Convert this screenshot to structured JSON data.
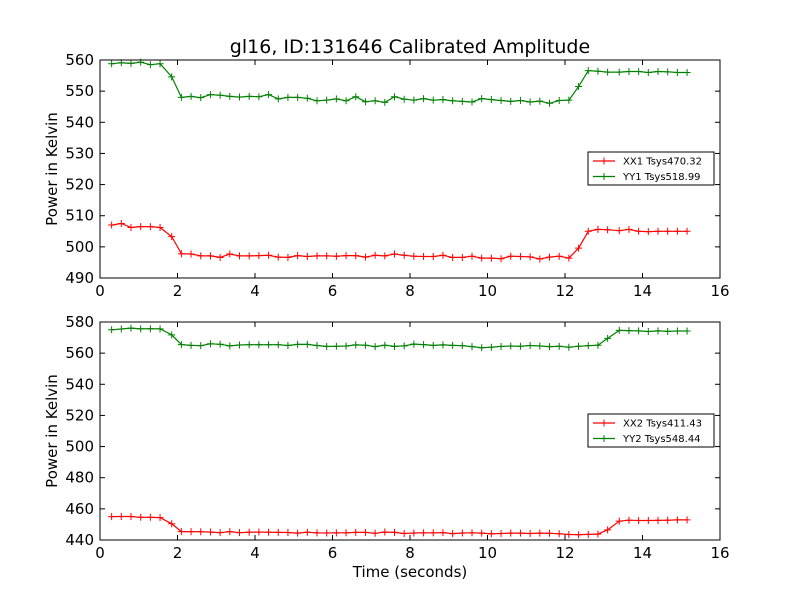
{
  "figure": {
    "title": "gl16, ID:131646 Calibrated Amplitude",
    "xlabel": "Time (seconds)"
  },
  "chart_data": [
    {
      "type": "line",
      "title": "gl16, ID:131646 Calibrated Amplitude",
      "xlabel": "",
      "ylabel": "Power in Kelvin",
      "xlim": [
        0,
        16
      ],
      "ylim": [
        490,
        560
      ],
      "xticks": [
        0,
        2,
        4,
        6,
        8,
        10,
        12,
        14,
        16
      ],
      "yticks": [
        490,
        500,
        510,
        520,
        530,
        540,
        550,
        560
      ],
      "xtick_labels": [
        "0",
        "2",
        "4",
        "6",
        "8",
        "10",
        "12",
        "14",
        "16"
      ],
      "ytick_labels": [
        "490",
        "500",
        "510",
        "520",
        "530",
        "540",
        "550",
        "560"
      ],
      "grid": false,
      "legend_position": "center-right",
      "x": [
        0.3,
        0.55,
        0.8,
        1.05,
        1.3,
        1.55,
        1.85,
        2.1,
        2.35,
        2.6,
        2.85,
        3.1,
        3.35,
        3.6,
        3.85,
        4.1,
        4.35,
        4.6,
        4.85,
        5.1,
        5.35,
        5.6,
        5.85,
        6.1,
        6.35,
        6.6,
        6.85,
        7.1,
        7.35,
        7.6,
        7.85,
        8.1,
        8.35,
        8.6,
        8.85,
        9.1,
        9.35,
        9.6,
        9.85,
        10.1,
        10.35,
        10.6,
        10.85,
        11.1,
        11.35,
        11.6,
        11.85,
        12.1,
        12.35,
        12.6,
        12.85,
        13.1,
        13.4,
        13.65,
        13.9,
        14.15,
        14.4,
        14.65,
        14.9,
        15.15
      ],
      "series": [
        {
          "name": "XX1 Tsys470.32",
          "color": "#ff0000",
          "values": [
            507.0,
            507.5,
            506.2,
            506.5,
            506.5,
            506.2,
            503.3,
            497.8,
            497.7,
            497.1,
            497.1,
            496.6,
            497.7,
            497.1,
            497.1,
            497.2,
            497.3,
            496.7,
            496.6,
            497.2,
            496.9,
            497.1,
            497.1,
            497.0,
            497.2,
            497.2,
            496.7,
            497.3,
            497.1,
            497.7,
            497.3,
            497.0,
            496.9,
            496.9,
            497.3,
            496.6,
            496.6,
            497.0,
            496.4,
            496.4,
            496.2,
            497.0,
            496.9,
            496.8,
            496.1,
            496.7,
            497.0,
            496.4,
            499.6,
            505.0,
            505.6,
            505.5,
            505.2,
            505.6,
            505.0,
            504.9,
            505.0,
            505.0,
            505.0,
            505.0
          ]
        },
        {
          "name": "YY1 Tsys518.99",
          "color": "#008000",
          "values": [
            558.8,
            559.1,
            558.9,
            559.3,
            558.5,
            558.8,
            554.6,
            548.0,
            548.3,
            547.9,
            548.9,
            548.7,
            548.3,
            548.1,
            548.3,
            548.2,
            548.9,
            547.5,
            548.0,
            548.0,
            547.7,
            546.9,
            547.1,
            547.5,
            546.9,
            548.2,
            546.6,
            546.9,
            546.4,
            548.2,
            547.4,
            547.1,
            547.6,
            547.1,
            547.3,
            546.9,
            546.7,
            546.5,
            547.6,
            547.3,
            547.0,
            546.7,
            547.0,
            546.5,
            546.8,
            546.1,
            547.0,
            547.1,
            551.5,
            556.6,
            556.4,
            556.1,
            556.1,
            556.3,
            556.3,
            556.0,
            556.3,
            556.2,
            556.0,
            556.0
          ]
        }
      ]
    },
    {
      "type": "line",
      "title": "",
      "xlabel": "Time (seconds)",
      "ylabel": "Power in Kelvin",
      "xlim": [
        0,
        16
      ],
      "ylim": [
        440,
        580
      ],
      "xticks": [
        0,
        2,
        4,
        6,
        8,
        10,
        12,
        14,
        16
      ],
      "yticks": [
        440,
        460,
        480,
        500,
        520,
        540,
        560,
        580
      ],
      "xtick_labels": [
        "0",
        "2",
        "4",
        "6",
        "8",
        "10",
        "12",
        "14",
        "16"
      ],
      "ytick_labels": [
        "440",
        "460",
        "480",
        "500",
        "520",
        "540",
        "560",
        "580"
      ],
      "grid": false,
      "legend_position": "center-right",
      "x": [
        0.3,
        0.55,
        0.8,
        1.05,
        1.3,
        1.55,
        1.85,
        2.1,
        2.35,
        2.6,
        2.85,
        3.1,
        3.35,
        3.6,
        3.85,
        4.1,
        4.35,
        4.6,
        4.85,
        5.1,
        5.35,
        5.6,
        5.85,
        6.1,
        6.35,
        6.6,
        6.85,
        7.1,
        7.35,
        7.6,
        7.85,
        8.1,
        8.35,
        8.6,
        8.85,
        9.1,
        9.35,
        9.6,
        9.85,
        10.1,
        10.35,
        10.6,
        10.85,
        11.1,
        11.35,
        11.6,
        11.85,
        12.1,
        12.35,
        12.6,
        12.85,
        13.1,
        13.4,
        13.65,
        13.9,
        14.15,
        14.4,
        14.65,
        14.9,
        15.15
      ],
      "series": [
        {
          "name": "XX2 Tsys411.43",
          "color": "#ff0000",
          "values": [
            455.0,
            455.1,
            455.1,
            454.6,
            454.6,
            454.4,
            450.4,
            445.4,
            445.4,
            445.3,
            445.1,
            444.7,
            445.4,
            444.7,
            445.0,
            445.1,
            445.0,
            444.9,
            444.8,
            444.4,
            445.0,
            444.6,
            444.5,
            444.6,
            444.6,
            444.9,
            444.9,
            444.3,
            445.1,
            444.9,
            444.2,
            444.5,
            444.6,
            444.6,
            444.7,
            444.1,
            444.5,
            444.6,
            444.4,
            444.0,
            444.2,
            444.4,
            444.4,
            444.2,
            444.4,
            444.3,
            444.0,
            443.5,
            443.4,
            443.6,
            443.8,
            446.5,
            452.1,
            452.7,
            452.5,
            452.5,
            452.6,
            452.7,
            452.9,
            452.9
          ]
        },
        {
          "name": "YY2 Tsys548.44",
          "color": "#008000",
          "values": [
            575.0,
            575.5,
            576.1,
            575.6,
            575.7,
            575.6,
            571.7,
            565.5,
            565.0,
            564.8,
            566.0,
            565.7,
            564.7,
            565.2,
            565.4,
            565.4,
            565.4,
            565.4,
            564.9,
            565.6,
            565.6,
            564.9,
            564.3,
            564.4,
            564.6,
            565.3,
            565.1,
            564.2,
            565.1,
            564.3,
            564.7,
            565.8,
            565.5,
            565.0,
            565.3,
            565.0,
            564.8,
            564.2,
            563.5,
            563.8,
            564.3,
            564.6,
            564.4,
            564.9,
            564.6,
            564.2,
            564.4,
            563.8,
            564.4,
            564.8,
            565.1,
            569.5,
            574.6,
            574.5,
            574.3,
            573.9,
            574.3,
            574.0,
            574.2,
            574.2
          ]
        }
      ]
    }
  ]
}
